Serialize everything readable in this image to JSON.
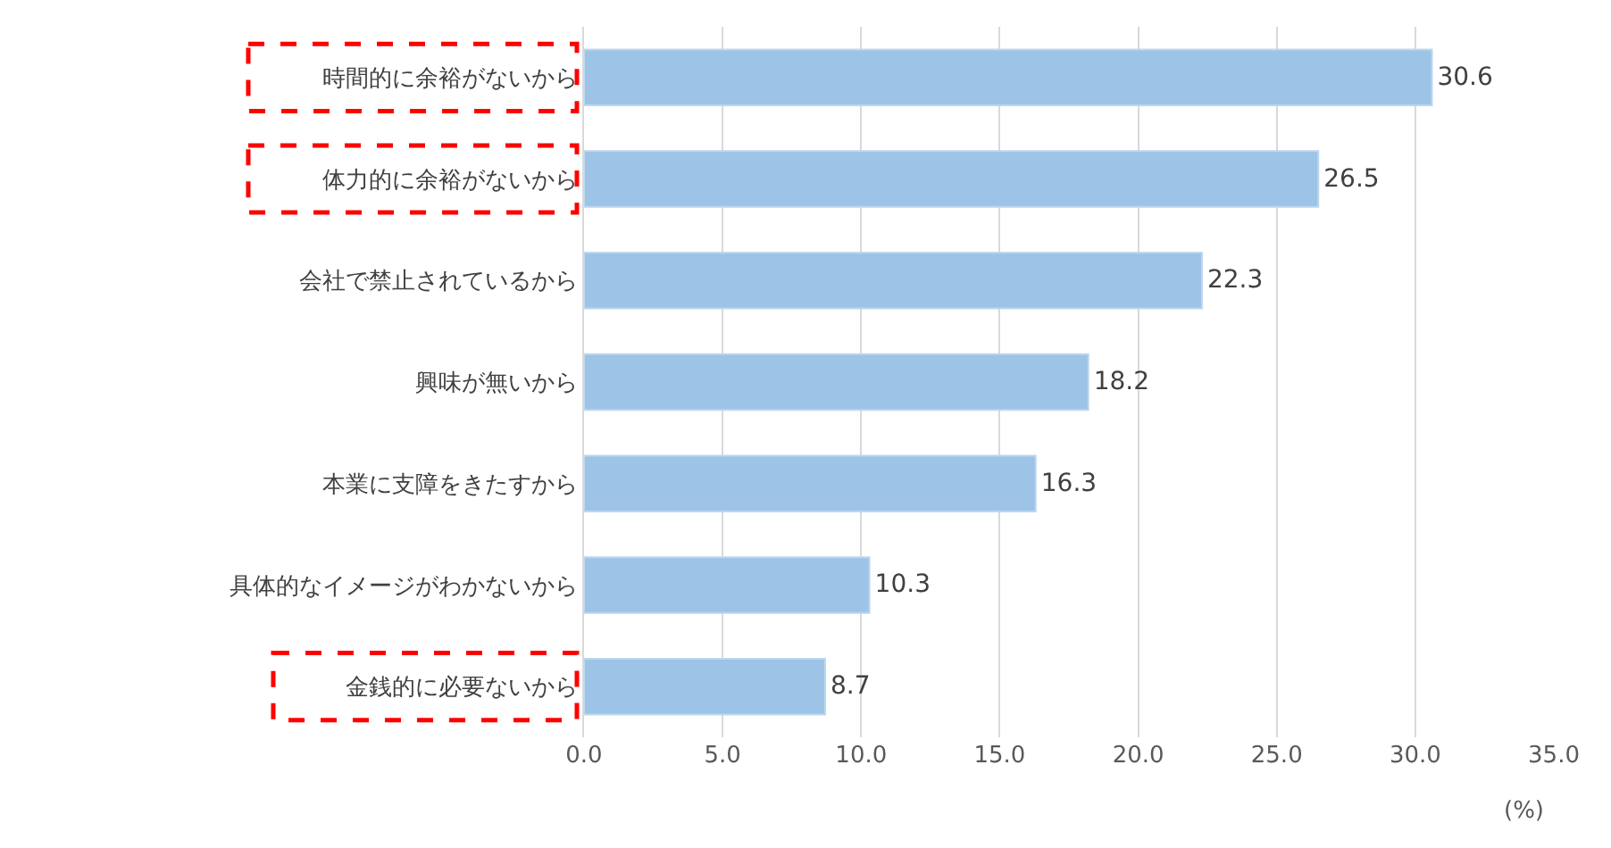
{
  "chart_data": {
    "type": "bar",
    "orientation": "horizontal",
    "categories": [
      "時間的に余裕がないから",
      "体力的に余裕がないから",
      "会社で禁止されているから",
      "興味が無いから",
      "本業に支障をきたすから",
      "具体的なイメージがわかないから",
      "金銭的に必要ないから"
    ],
    "values": [
      30.6,
      26.5,
      22.3,
      18.2,
      16.3,
      10.3,
      8.7
    ],
    "color": "#9dc3e6",
    "xlabel": "(%)",
    "xlim": [
      0,
      35
    ],
    "xticks": [
      {
        "value": 0,
        "label": "0.0"
      },
      {
        "value": 5,
        "label": "5.0"
      },
      {
        "value": 10,
        "label": "10.0"
      },
      {
        "value": 15,
        "label": "15.0"
      },
      {
        "value": 20,
        "label": "20.0"
      },
      {
        "value": 25,
        "label": "25.0"
      },
      {
        "value": 30,
        "label": "30.0"
      },
      {
        "value": 35,
        "label": "35.0"
      }
    ],
    "grid": "x",
    "data_labels": true
  }
}
